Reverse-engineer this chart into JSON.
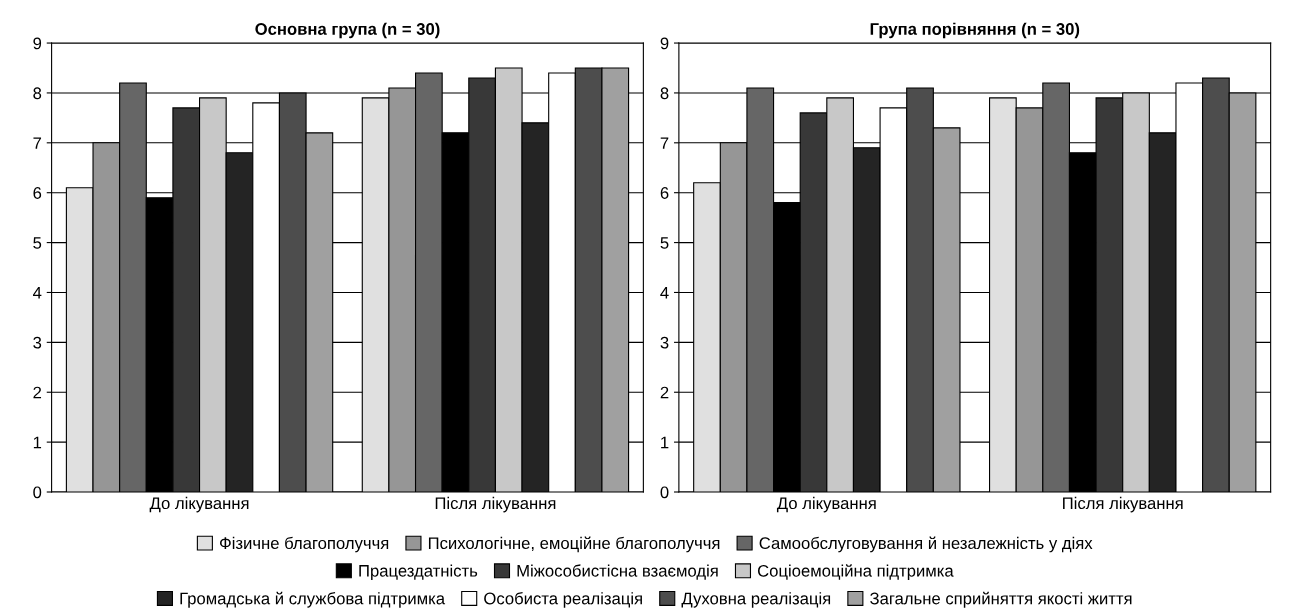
{
  "chart_data": [
    {
      "type": "bar",
      "title": "Основна група (n = 30)",
      "categories": [
        "До лікування",
        "Після лікування"
      ],
      "ylim": [
        0,
        9
      ],
      "yticks": [
        0,
        1,
        2,
        3,
        4,
        5,
        6,
        7,
        8,
        9
      ],
      "grid": "y",
      "legend": "bottom",
      "series": [
        {
          "name": "Фізичне благополуччя",
          "color": "#e0e0e0",
          "values": [
            6.1,
            7.9
          ]
        },
        {
          "name": "Психологічне, емоційне благополуччя",
          "color": "#969696",
          "values": [
            7.0,
            8.1
          ]
        },
        {
          "name": "Самообслуговування й незалежність у діях",
          "color": "#666666",
          "values": [
            8.2,
            8.4
          ]
        },
        {
          "name": "Працездатність",
          "color": "#000000",
          "values": [
            5.9,
            7.2
          ]
        },
        {
          "name": "Міжособистісна взаємодія",
          "color": "#383838",
          "values": [
            7.7,
            8.3
          ]
        },
        {
          "name": "Соціоемоційна підтримка",
          "color": "#c8c8c8",
          "values": [
            7.9,
            8.5
          ]
        },
        {
          "name": "Громадська й службова підтримка",
          "color": "#242424",
          "values": [
            6.8,
            7.4
          ]
        },
        {
          "name": "Особиста реалізація",
          "color": "#ffffff",
          "values": [
            7.8,
            8.4
          ]
        },
        {
          "name": "Духовна реалізація",
          "color": "#4d4d4d",
          "values": [
            8.0,
            8.5
          ]
        },
        {
          "name": "Загальне сприйняття якості життя",
          "color": "#a0a0a0",
          "values": [
            7.2,
            8.5
          ]
        }
      ]
    },
    {
      "type": "bar",
      "title": "Група порівняння (n = 30)",
      "categories": [
        "До лікування",
        "Після лікування"
      ],
      "ylim": [
        0,
        9
      ],
      "yticks": [
        0,
        1,
        2,
        3,
        4,
        5,
        6,
        7,
        8,
        9
      ],
      "grid": "y",
      "legend": "bottom",
      "series": [
        {
          "name": "Фізичне благополуччя",
          "color": "#e0e0e0",
          "values": [
            6.2,
            7.9
          ]
        },
        {
          "name": "Психологічне, емоційне благополуччя",
          "color": "#969696",
          "values": [
            7.0,
            7.7
          ]
        },
        {
          "name": "Самообслуговування й незалежність у діях",
          "color": "#666666",
          "values": [
            8.1,
            8.2
          ]
        },
        {
          "name": "Працездатність",
          "color": "#000000",
          "values": [
            5.8,
            6.8
          ]
        },
        {
          "name": "Міжособистісна взаємодія",
          "color": "#383838",
          "values": [
            7.6,
            7.9
          ]
        },
        {
          "name": "Соціоемоційна підтримка",
          "color": "#c8c8c8",
          "values": [
            7.9,
            8.0
          ]
        },
        {
          "name": "Громадська й службова підтримка",
          "color": "#242424",
          "values": [
            6.9,
            7.2
          ]
        },
        {
          "name": "Особиста реалізація",
          "color": "#ffffff",
          "values": [
            7.7,
            8.2
          ]
        },
        {
          "name": "Духовна реалізація",
          "color": "#4d4d4d",
          "values": [
            8.1,
            8.3
          ]
        },
        {
          "name": "Загальне сприйняття якості життя",
          "color": "#a0a0a0",
          "values": [
            7.3,
            8.0
          ]
        }
      ]
    }
  ]
}
